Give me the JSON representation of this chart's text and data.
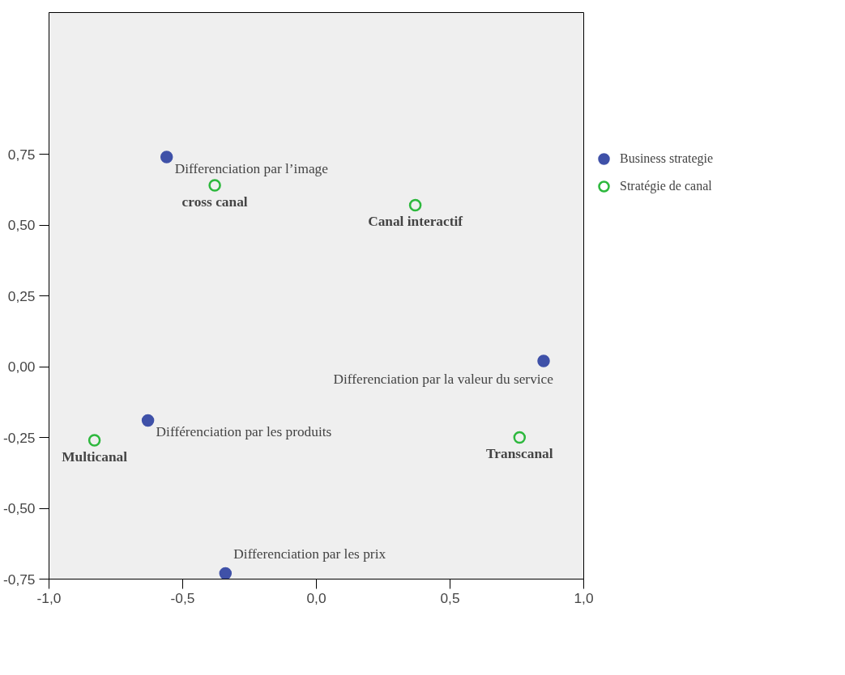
{
  "chart_data": {
    "type": "scatter",
    "legend": "right",
    "grid": false,
    "marker": "circle",
    "xlim": [
      -1.0,
      1.0
    ],
    "ylim": [
      -0.75,
      1.25
    ],
    "xticks": [
      {
        "value": -1.0,
        "label": "-1,0"
      },
      {
        "value": -0.5,
        "label": "-0,5"
      },
      {
        "value": 0.0,
        "label": "0,0"
      },
      {
        "value": 0.5,
        "label": "0,5"
      },
      {
        "value": 1.0,
        "label": "1,0"
      }
    ],
    "yticks": [
      {
        "value": -0.75,
        "label": "-0,75"
      },
      {
        "value": -0.5,
        "label": "-0,50"
      },
      {
        "value": -0.25,
        "label": "-0,25"
      },
      {
        "value": 0.0,
        "label": "0,00"
      },
      {
        "value": 0.25,
        "label": "0,25"
      },
      {
        "value": 0.5,
        "label": "0,50"
      },
      {
        "value": 0.75,
        "label": "0,75"
      }
    ],
    "series": [
      {
        "name": "Business strategie",
        "color": "#3f51a8",
        "x": [
          -0.56,
          0.85,
          -0.63,
          -0.34
        ],
        "values": [
          0.74,
          0.02,
          -0.19,
          -0.73
        ],
        "value_labels": [
          "Differenciation par l’image",
          "Differenciation par la valeur du service",
          "Différenciation par les produits",
          "Differenciation par les prix"
        ]
      },
      {
        "name": "Stratégie de canal",
        "color": "#2db83d",
        "x": [
          -0.38,
          0.37,
          -0.83,
          0.76
        ],
        "values": [
          0.64,
          0.57,
          -0.26,
          -0.25
        ],
        "value_labels": [
          "cross canal",
          "Canal interactif",
          "Multicanal",
          "Transcanal"
        ]
      }
    ]
  }
}
